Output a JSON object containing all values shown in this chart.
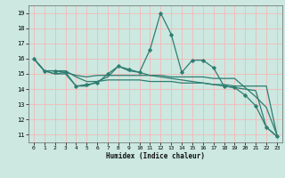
{
  "xlabel": "Humidex (Indice chaleur)",
  "bg_color": "#cce8e0",
  "grid_color": "#f5b8b8",
  "line_color": "#2e7d72",
  "xlim": [
    -0.5,
    23.5
  ],
  "ylim": [
    10.5,
    19.5
  ],
  "yticks": [
    11,
    12,
    13,
    14,
    15,
    16,
    17,
    18,
    19
  ],
  "xticks": [
    0,
    1,
    2,
    3,
    4,
    5,
    6,
    7,
    8,
    9,
    10,
    11,
    12,
    13,
    14,
    15,
    16,
    17,
    18,
    19,
    20,
    21,
    22,
    23
  ],
  "series": [
    [
      16.0,
      15.2,
      15.2,
      15.1,
      14.2,
      14.3,
      14.4,
      15.0,
      15.5,
      15.3,
      15.1,
      16.6,
      19.0,
      17.6,
      15.1,
      15.9,
      15.9,
      15.4,
      14.2,
      14.1,
      13.6,
      12.9,
      11.5,
      10.9
    ],
    [
      16.0,
      15.2,
      15.0,
      15.0,
      14.2,
      14.2,
      14.5,
      14.8,
      15.5,
      15.2,
      15.1,
      14.9,
      14.8,
      14.7,
      14.6,
      14.5,
      14.4,
      14.3,
      14.2,
      14.1,
      14.0,
      13.9,
      11.5,
      10.9
    ],
    [
      16.0,
      15.2,
      15.2,
      15.2,
      14.8,
      14.5,
      14.5,
      14.6,
      14.6,
      14.6,
      14.6,
      14.5,
      14.5,
      14.5,
      14.4,
      14.4,
      14.4,
      14.3,
      14.3,
      14.2,
      14.2,
      14.2,
      14.2,
      11.0
    ],
    [
      16.0,
      15.2,
      15.0,
      15.1,
      14.9,
      14.8,
      14.9,
      14.9,
      14.9,
      14.9,
      14.9,
      14.9,
      14.9,
      14.8,
      14.8,
      14.8,
      14.8,
      14.7,
      14.7,
      14.7,
      14.1,
      13.5,
      12.8,
      11.0
    ]
  ]
}
